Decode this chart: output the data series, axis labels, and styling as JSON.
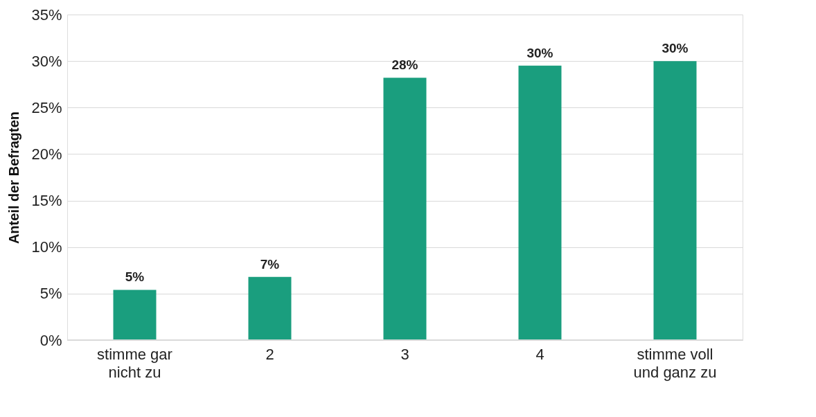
{
  "chart_data": {
    "type": "bar",
    "ylabel": "Anteil der Befragten",
    "categories": [
      "stimme gar\nnicht zu",
      "2",
      "3",
      "4",
      "stimme voll\nund ganz zu"
    ],
    "values": [
      5.4,
      6.8,
      28.2,
      29.5,
      30.0
    ],
    "value_labels": [
      "5%",
      "7%",
      "28%",
      "30%",
      "30%"
    ],
    "color": "#1a9e7e",
    "ylim": [
      0,
      35
    ],
    "yticks": [
      {
        "value": 0,
        "label": "0%"
      },
      {
        "value": 5,
        "label": "5%"
      },
      {
        "value": 10,
        "label": "10%"
      },
      {
        "value": 15,
        "label": "15%"
      },
      {
        "value": 20,
        "label": "20%"
      },
      {
        "value": 25,
        "label": "25%"
      },
      {
        "value": 30,
        "label": "30%"
      },
      {
        "value": 35,
        "label": "35%"
      }
    ],
    "grid": "y"
  }
}
